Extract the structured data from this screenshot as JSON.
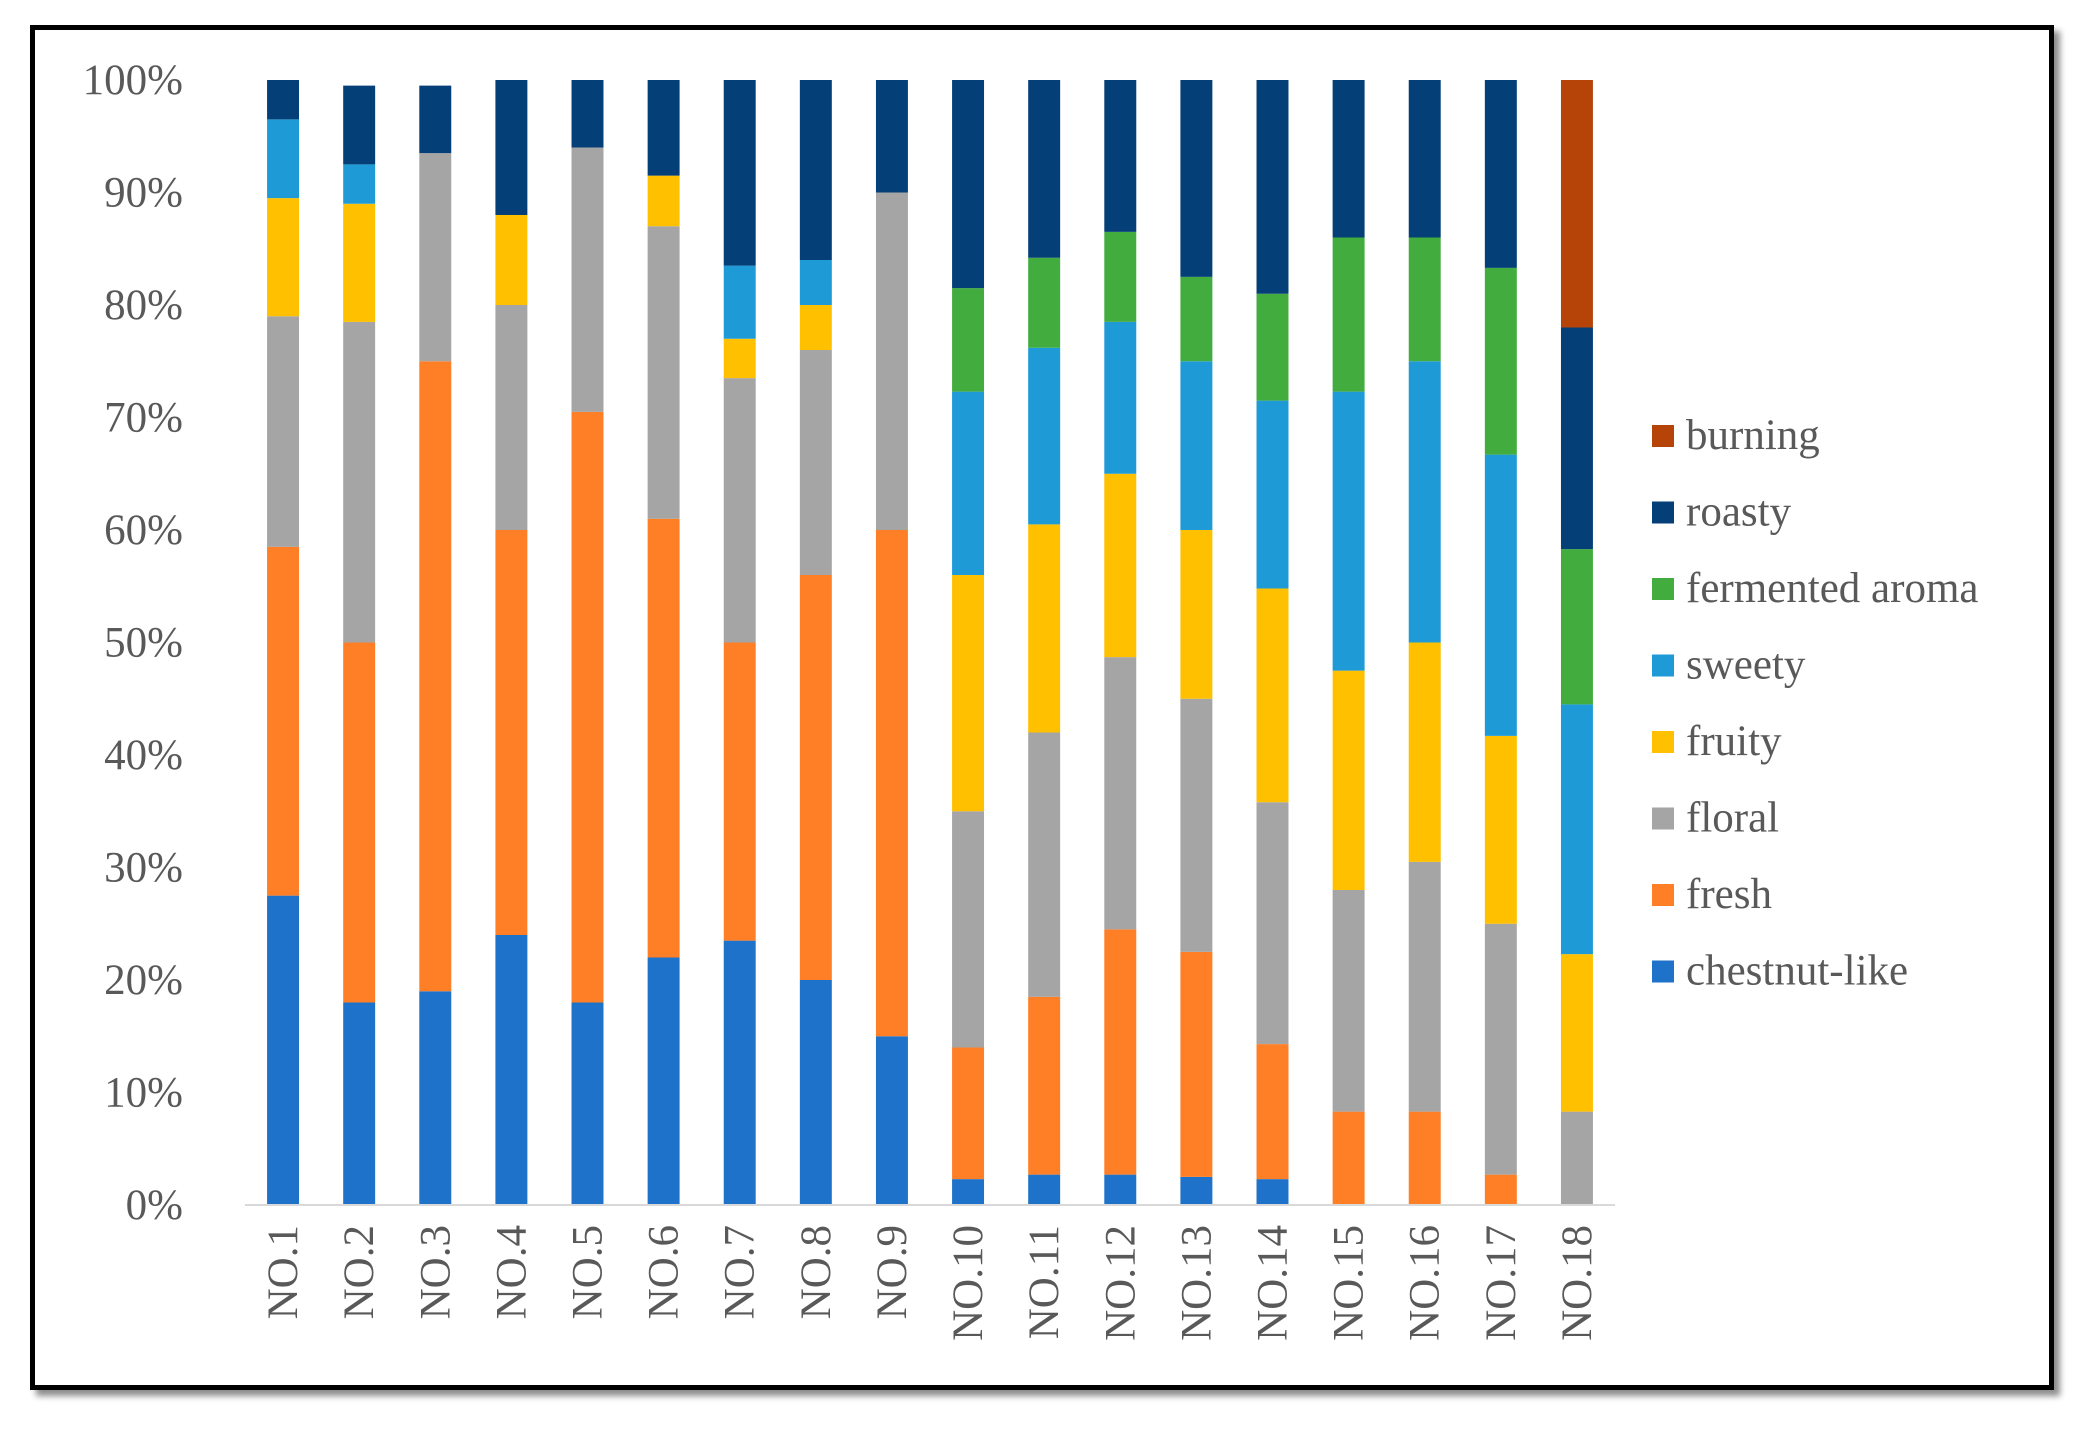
{
  "chart_data": {
    "type": "bar",
    "stacked": true,
    "percent": true,
    "title": "",
    "xlabel": "",
    "ylabel": "",
    "ylim": [
      0,
      100
    ],
    "y_ticks": [
      "0%",
      "10%",
      "20%",
      "30%",
      "40%",
      "50%",
      "60%",
      "70%",
      "80%",
      "90%",
      "100%"
    ],
    "grid": false,
    "legend_position": "right",
    "categories": [
      "NO.1",
      "NO.2",
      "NO.3",
      "NO.4",
      "NO.5",
      "NO.6",
      "NO.7",
      "NO.8",
      "NO.9",
      "NO.10",
      "NO.11",
      "NO.12",
      "NO.13",
      "NO.14",
      "NO.15",
      "NO.16",
      "NO.17",
      "NO.18"
    ],
    "series": [
      {
        "name": "chestnut-like",
        "color": "#1F72C9",
        "values": [
          27.5,
          18,
          19,
          24,
          18,
          22,
          23.5,
          20,
          15,
          2.3,
          2.7,
          2.7,
          2.5,
          2.3,
          0,
          0,
          0,
          0
        ]
      },
      {
        "name": "fresh",
        "color": "#FF7F27",
        "values": [
          31,
          32,
          56,
          36,
          52.5,
          39,
          26.5,
          36,
          45,
          11.7,
          15.8,
          21.8,
          20,
          12,
          8.3,
          8.3,
          2.7,
          0
        ]
      },
      {
        "name": "floral",
        "color": "#A5A5A5",
        "values": [
          20.5,
          28.5,
          18.5,
          20,
          23.5,
          26,
          23.5,
          20,
          30,
          21,
          23.5,
          24.2,
          22.5,
          21.5,
          19.7,
          22.2,
          22.3,
          8.3
        ]
      },
      {
        "name": "fruity",
        "color": "#FFC000",
        "values": [
          10.5,
          10.5,
          0,
          8,
          0,
          4.5,
          3.5,
          4,
          0,
          21,
          18.5,
          16.3,
          15,
          19,
          19.5,
          19.5,
          16.7,
          14
        ]
      },
      {
        "name": "sweety",
        "color": "#1E9BD7",
        "values": [
          7,
          3.5,
          0,
          0,
          0,
          0,
          6.5,
          4,
          0,
          16.3,
          15.7,
          13.5,
          15,
          16.7,
          24.8,
          25,
          25,
          22.2
        ]
      },
      {
        "name": "fermented aroma",
        "color": "#43AC3F",
        "values": [
          0,
          0,
          0,
          0,
          0,
          0,
          0,
          0,
          0,
          9.2,
          8,
          8,
          7.5,
          9.5,
          13.7,
          11,
          16.6,
          13.8
        ]
      },
      {
        "name": "roasty",
        "color": "#053F77",
        "values": [
          3.5,
          7,
          6,
          12,
          6,
          8.5,
          16.5,
          16,
          10,
          18.5,
          15.8,
          13.5,
          17.5,
          19,
          14,
          14,
          16.7,
          19.7
        ]
      },
      {
        "name": "burning",
        "color": "#B64409",
        "values": [
          0,
          0,
          0,
          0,
          0,
          0,
          0,
          0,
          0,
          0,
          0,
          0,
          0,
          0,
          0,
          0,
          0,
          22
        ]
      }
    ],
    "legend_order": [
      "burning",
      "roasty",
      "fermented aroma",
      "sweety",
      "fruity",
      "floral",
      "fresh",
      "chestnut-like"
    ]
  }
}
